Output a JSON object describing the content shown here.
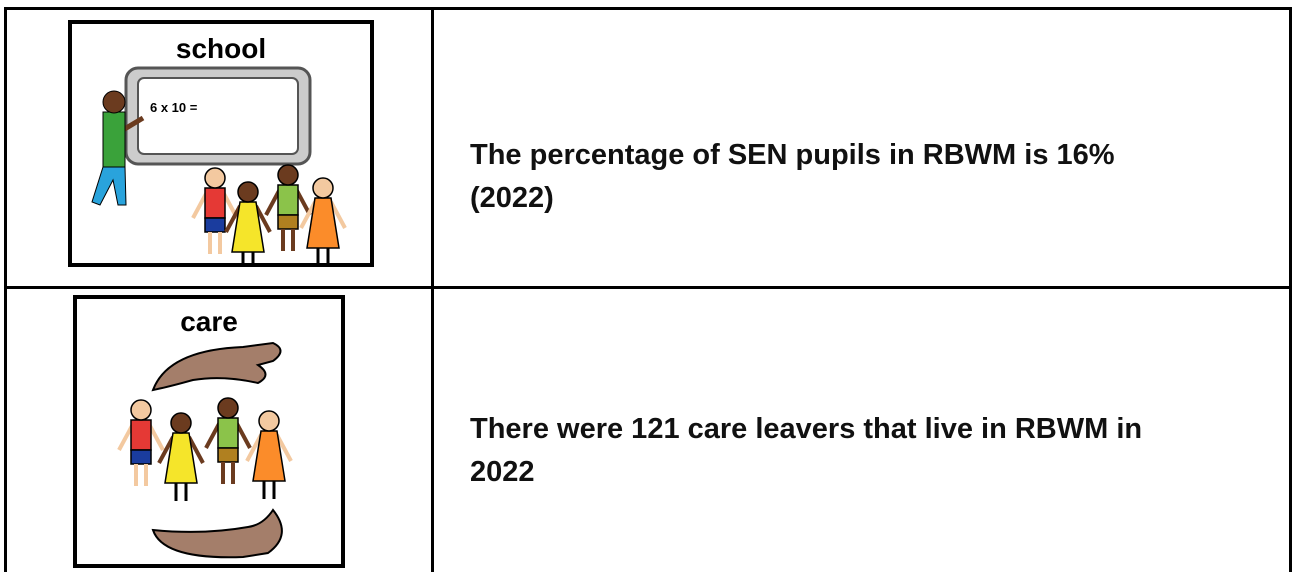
{
  "table": {
    "rows": [
      {
        "symbol": {
          "label": "school",
          "board_text": "6 x 10 ="
        },
        "text_lines": [
          "The percentage of SEN pupils in RBWM is 16%",
          "(2022)"
        ]
      },
      {
        "symbol": {
          "label": "care"
        },
        "text_lines": [
          "There were 121 care leavers that live in RBWM in",
          "2022"
        ]
      }
    ]
  }
}
